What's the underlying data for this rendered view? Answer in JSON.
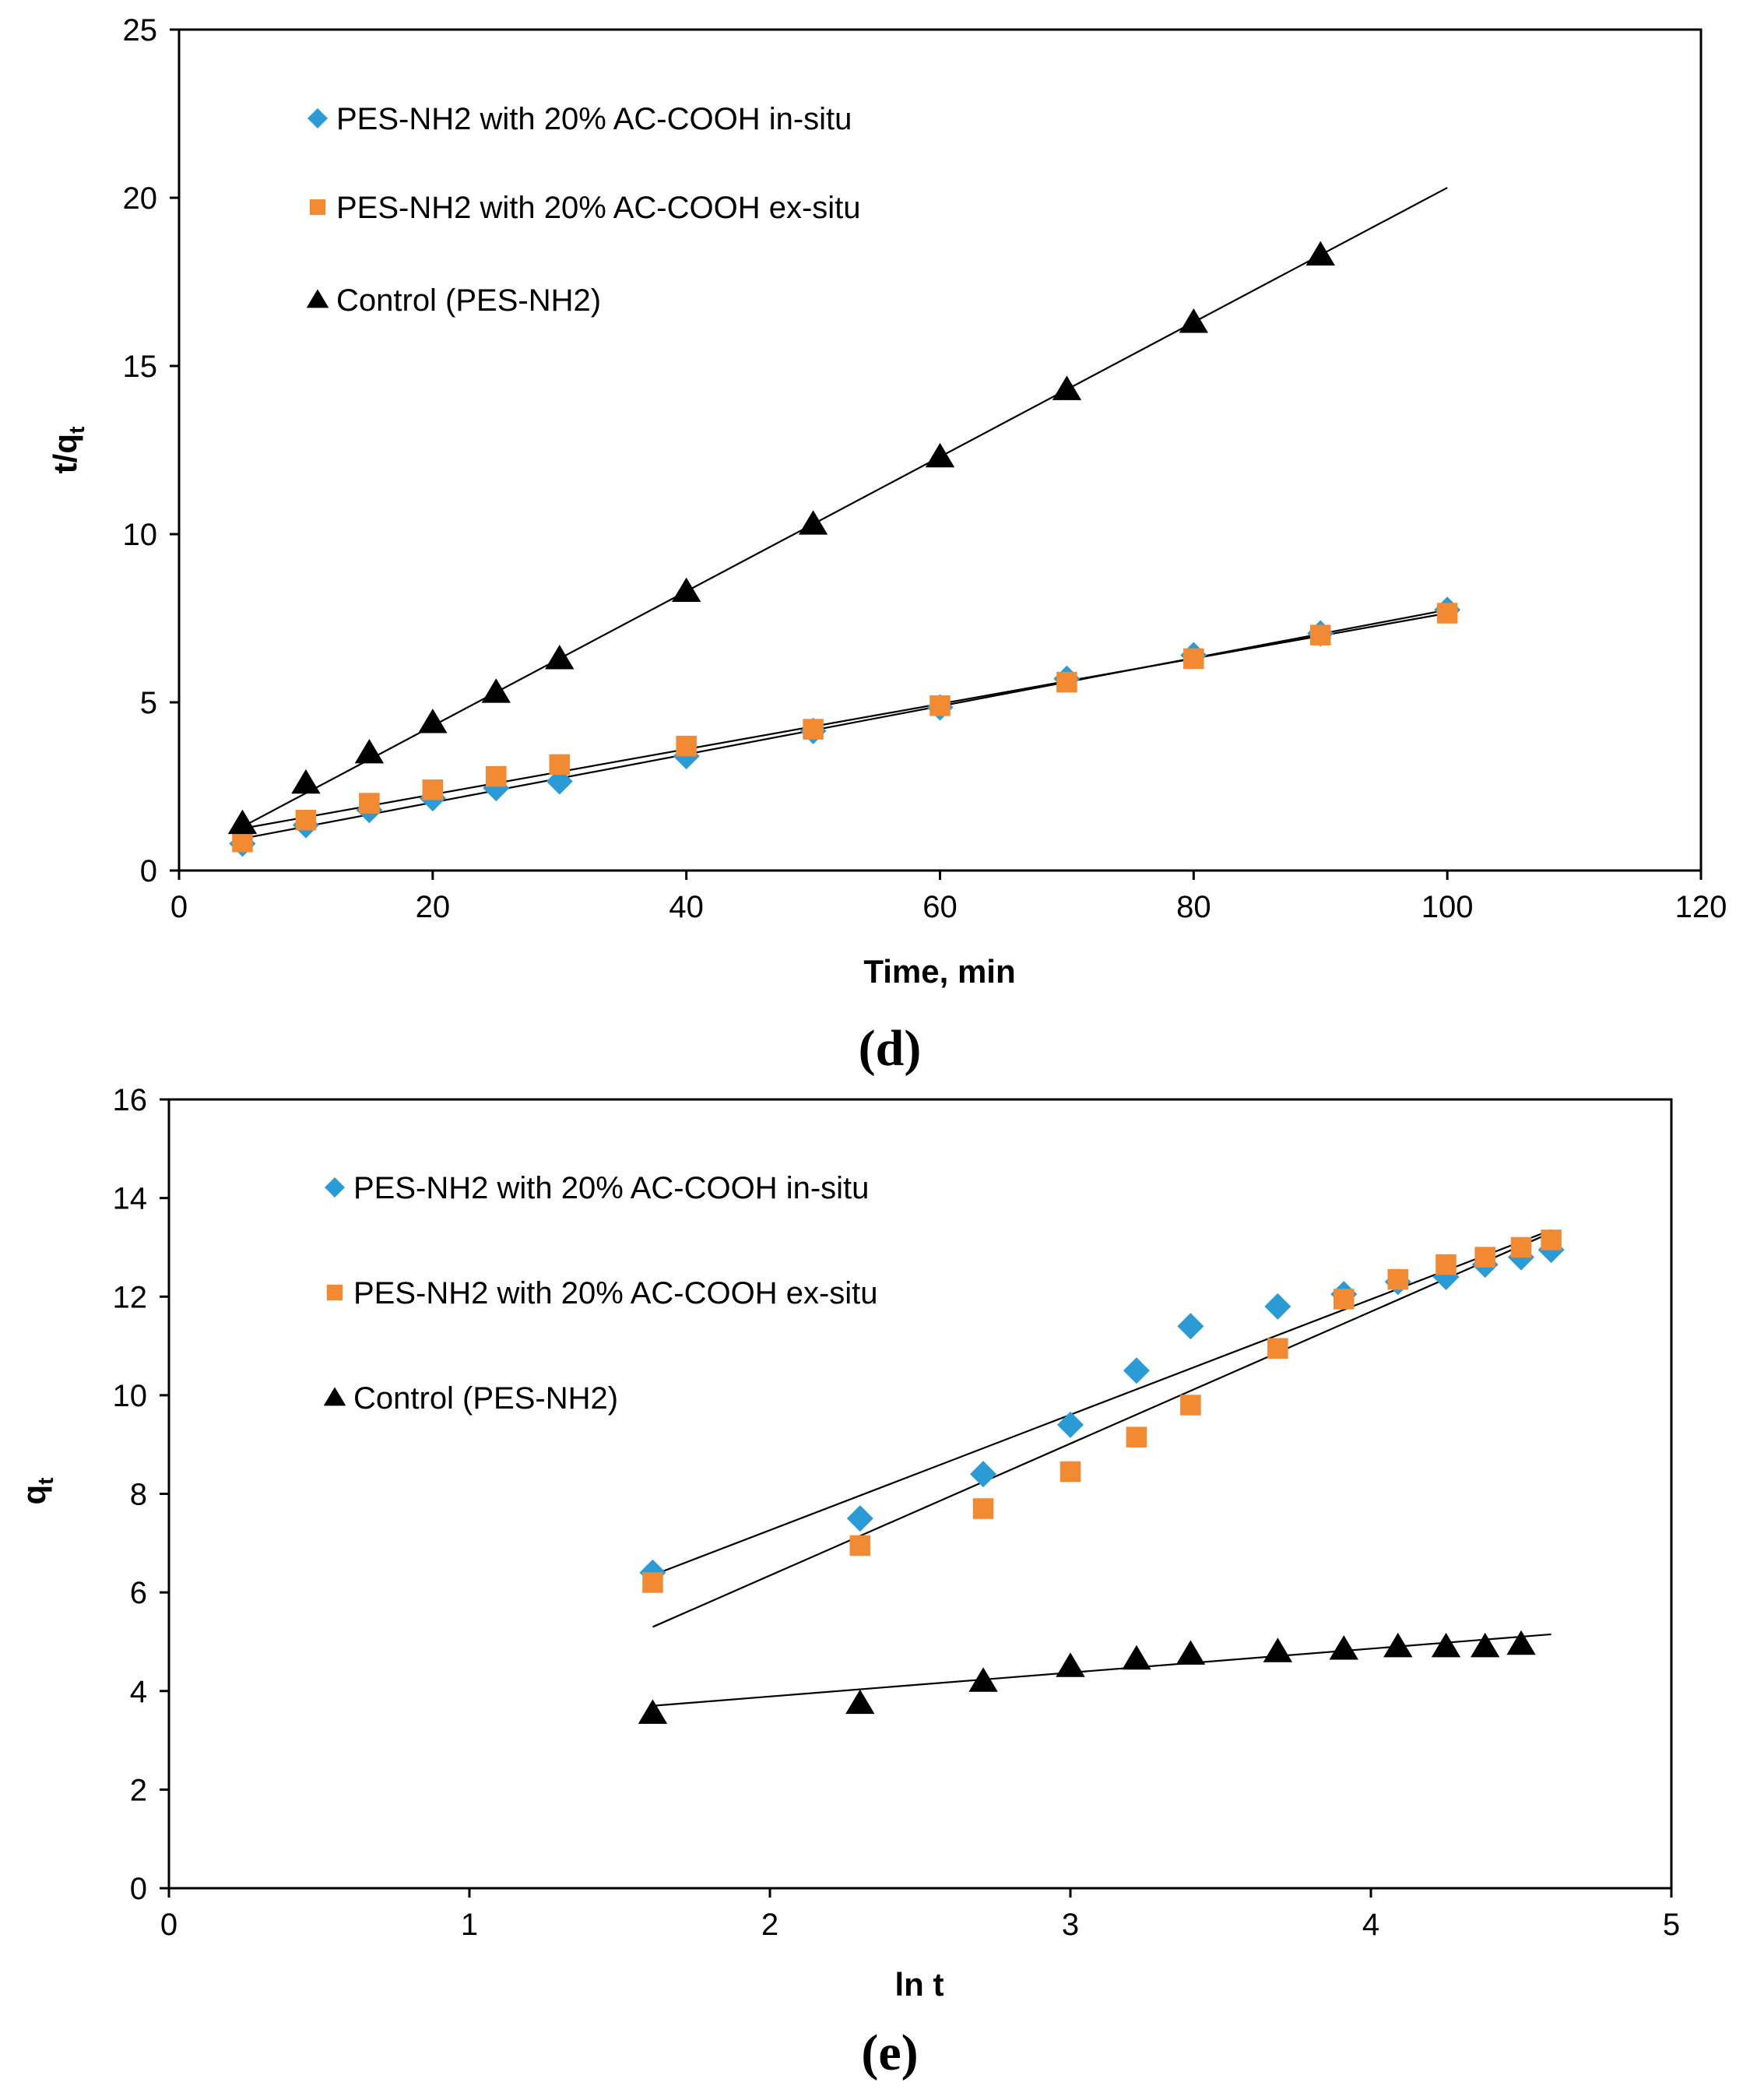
{
  "chart_data": [
    {
      "type": "scatter",
      "panel_label": "(d)",
      "xlabel": "Time, min",
      "ylabel": "t/q",
      "ylabel_sub": "t",
      "xlim": [
        0,
        120
      ],
      "ylim": [
        0,
        25
      ],
      "xticks": [
        0,
        20,
        40,
        60,
        80,
        100,
        120
      ],
      "yticks": [
        0,
        5,
        10,
        15,
        20,
        25
      ],
      "grid": false,
      "legend_position": "top-left",
      "series": [
        {
          "name": "PES-NH2 with 20% AC-COOH in-situ",
          "marker": "diamond",
          "color": "#2b9bd6",
          "x": [
            5,
            10,
            15,
            20,
            25,
            30,
            40,
            50,
            60,
            70,
            80,
            90,
            100
          ],
          "y": [
            0.8,
            1.35,
            1.8,
            2.15,
            2.45,
            2.65,
            3.4,
            4.15,
            4.85,
            5.7,
            6.4,
            7.05,
            7.75
          ],
          "fit": [
            [
              5,
              0.95
            ],
            [
              100,
              7.75
            ]
          ]
        },
        {
          "name": "PES-NH2 with 20% AC-COOH ex-situ",
          "marker": "square",
          "color": "#f28a33",
          "x": [
            5,
            10,
            15,
            20,
            25,
            30,
            40,
            50,
            60,
            70,
            80,
            90,
            100
          ],
          "y": [
            0.85,
            1.5,
            2.0,
            2.4,
            2.8,
            3.15,
            3.7,
            4.2,
            4.9,
            5.6,
            6.3,
            7.0,
            7.65
          ],
          "fit": [
            [
              5,
              1.25
            ],
            [
              100,
              7.65
            ]
          ]
        },
        {
          "name": "Control (PES-NH2)",
          "marker": "triangle",
          "color": "#000000",
          "x": [
            5,
            10,
            15,
            20,
            25,
            30,
            40,
            50,
            60,
            70,
            80,
            90
          ],
          "y": [
            1.4,
            2.6,
            3.5,
            4.4,
            5.3,
            6.3,
            8.3,
            10.3,
            12.3,
            14.3,
            16.3,
            18.3
          ],
          "fit": [
            [
              5,
              1.3
            ],
            [
              100,
              20.3
            ]
          ]
        }
      ]
    },
    {
      "type": "scatter",
      "panel_label": "(e)",
      "xlabel": "ln t",
      "ylabel": "q",
      "ylabel_sub": "t",
      "xlim": [
        0,
        5
      ],
      "ylim": [
        0,
        16
      ],
      "xticks": [
        0,
        1,
        2,
        3,
        4,
        5
      ],
      "yticks": [
        0,
        2,
        4,
        6,
        8,
        10,
        12,
        14,
        16
      ],
      "grid": false,
      "legend_position": "top-left",
      "series": [
        {
          "name": "PES-NH2 with 20% AC-COOH in-situ",
          "marker": "diamond",
          "color": "#2b9bd6",
          "x": [
            1.61,
            2.3,
            2.71,
            3.0,
            3.22,
            3.4,
            3.69,
            3.91,
            4.09,
            4.25,
            4.38,
            4.5,
            4.6
          ],
          "y": [
            6.4,
            7.5,
            8.4,
            9.4,
            10.5,
            11.4,
            11.8,
            12.05,
            12.3,
            12.4,
            12.65,
            12.8,
            12.95
          ],
          "fit": [
            [
              1.61,
              6.35
            ],
            [
              4.6,
              13.35
            ]
          ]
        },
        {
          "name": "PES-NH2 with 20% AC-COOH ex-situ",
          "marker": "square",
          "color": "#f28a33",
          "x": [
            1.61,
            2.3,
            2.71,
            3.0,
            3.22,
            3.4,
            3.69,
            3.91,
            4.09,
            4.25,
            4.38,
            4.5,
            4.6
          ],
          "y": [
            6.2,
            6.95,
            7.7,
            8.45,
            9.15,
            9.8,
            10.95,
            11.95,
            12.35,
            12.65,
            12.8,
            13.0,
            13.15
          ],
          "fit": [
            [
              1.61,
              5.3
            ],
            [
              4.6,
              13.3
            ]
          ]
        },
        {
          "name": "Control (PES-NH2)",
          "marker": "triangle",
          "color": "#000000",
          "x": [
            1.61,
            2.3,
            2.71,
            3.0,
            3.22,
            3.4,
            3.69,
            3.91,
            4.09,
            4.25,
            4.38,
            4.5
          ],
          "y": [
            3.55,
            3.75,
            4.2,
            4.5,
            4.65,
            4.75,
            4.8,
            4.85,
            4.9,
            4.9,
            4.9,
            4.95
          ],
          "fit": [
            [
              1.61,
              3.7
            ],
            [
              4.6,
              5.15
            ]
          ]
        }
      ]
    }
  ]
}
